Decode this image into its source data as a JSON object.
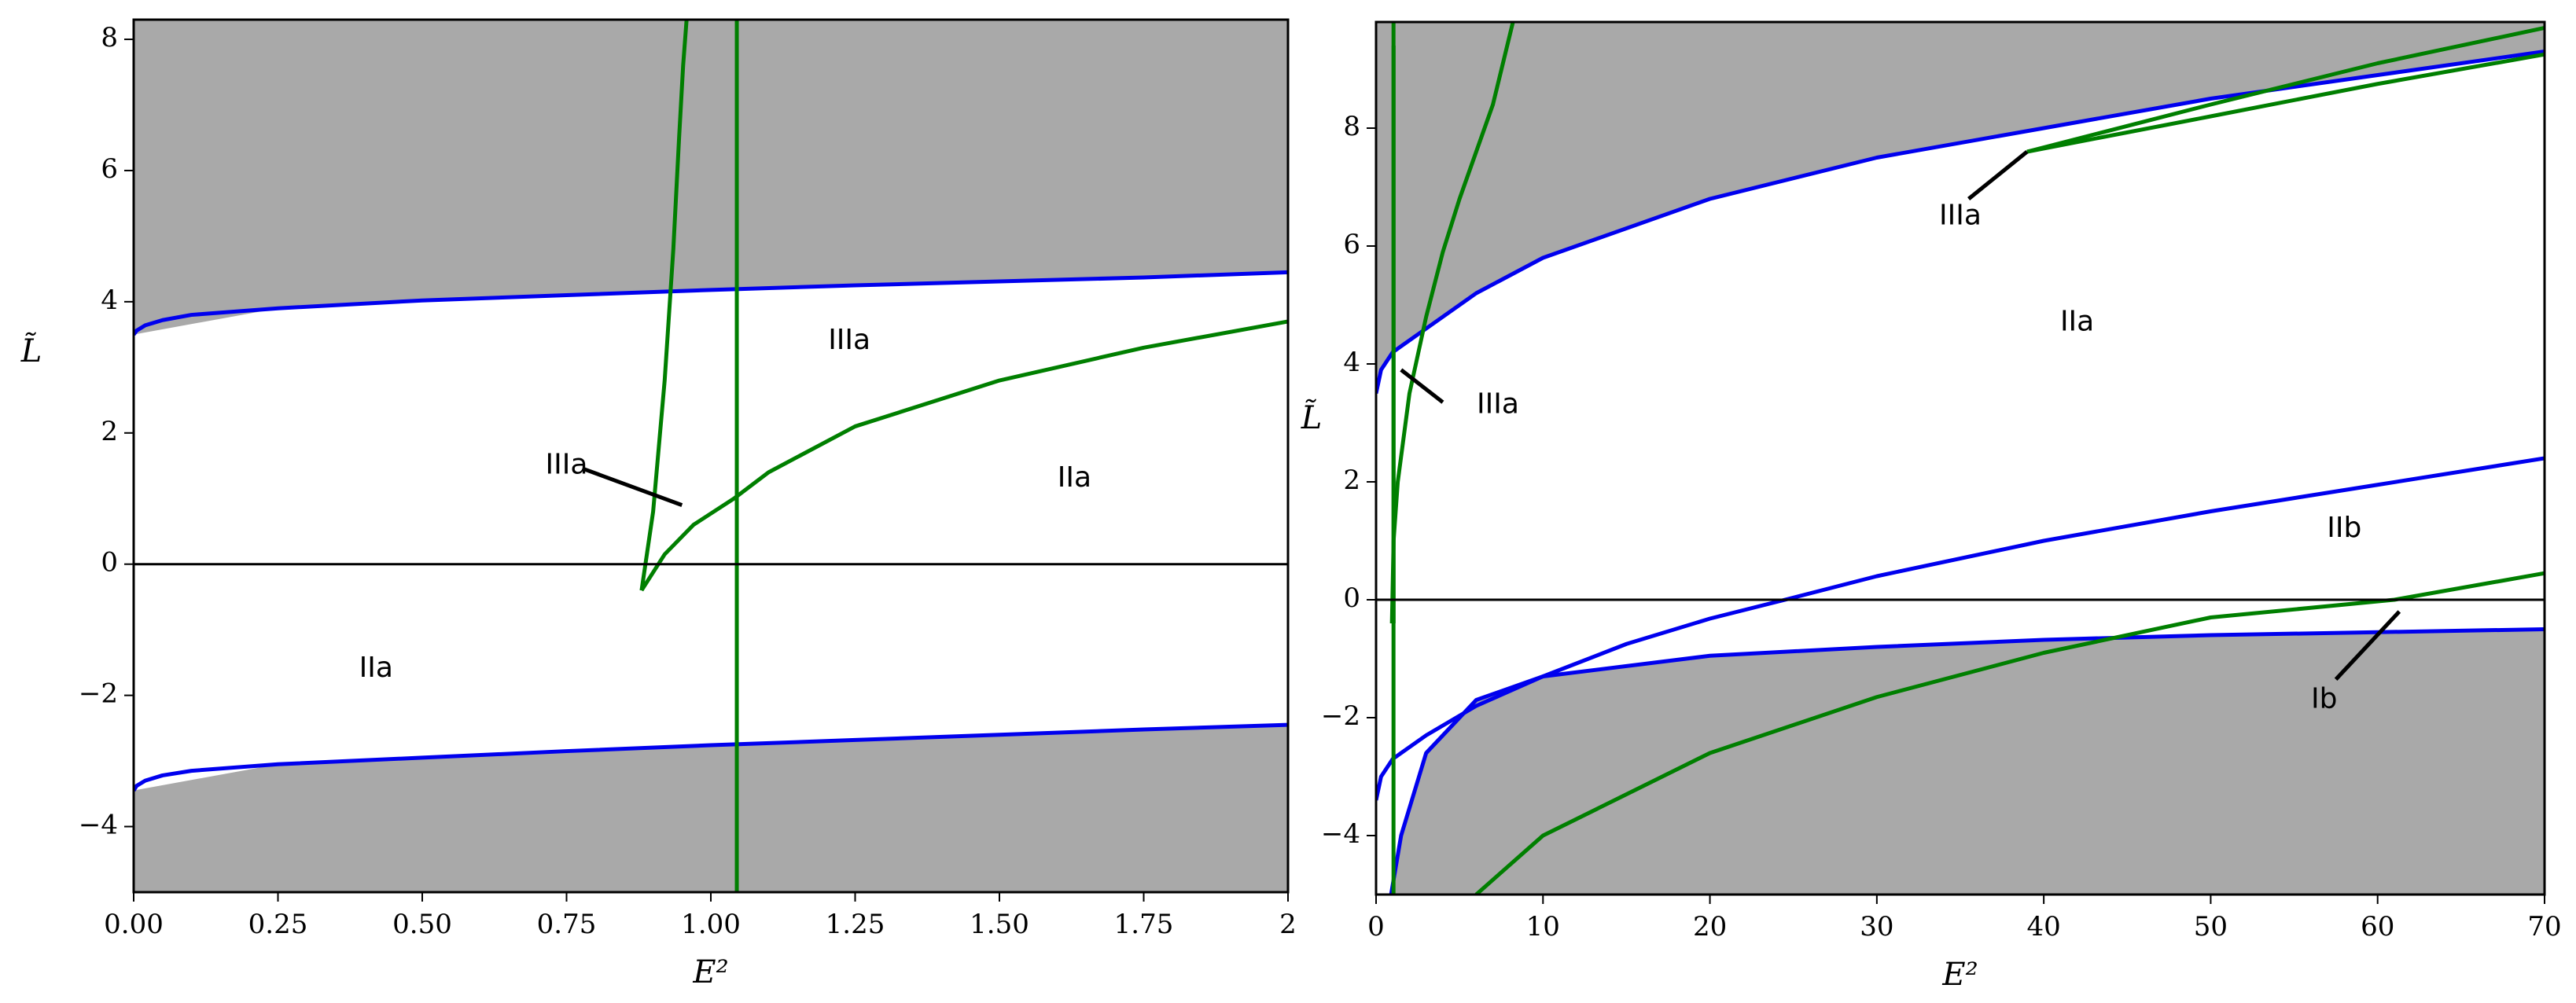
{
  "colors": {
    "shade": "#a9a9a9",
    "blue_curve": "#0000ee",
    "green_curve": "#007f00",
    "axis": "#000000",
    "background": "#ffffff"
  },
  "chart_data": [
    {
      "type": "line",
      "xlabel": "E²",
      "ylabel": "L̃",
      "xlim": [
        0,
        2
      ],
      "ylim": [
        -5,
        8.3
      ],
      "x_ticks": [
        0,
        0.25,
        0.5,
        0.75,
        1.0,
        1.25,
        1.5,
        1.75,
        2
      ],
      "x_tick_labels": [
        "0.00",
        "0.25",
        "0.50",
        "0.75",
        "1.00",
        "1.25",
        "1.50",
        "1.75",
        "2"
      ],
      "y_ticks": [
        -4,
        -2,
        0,
        2,
        4,
        6,
        8
      ],
      "y_tick_labels": [
        "−4",
        "−2",
        "0",
        "2",
        "4",
        "6",
        "8"
      ],
      "grid": false,
      "shaded_regions": [
        {
          "x": [
            0,
            0.25,
            0.5,
            0.75,
            1.0,
            1.25,
            1.5,
            1.75,
            2.0
          ],
          "lower": [
            3.5,
            3.9,
            4.02,
            4.1,
            4.18,
            4.25,
            4.31,
            4.37,
            4.45
          ],
          "upper": 8.3
        },
        {
          "x": [
            0,
            0.25,
            0.5,
            0.75,
            1.0,
            1.25,
            1.5,
            1.75,
            2.0
          ],
          "lower": -5,
          "upper": [
            -3.45,
            -3.05,
            -2.95,
            -2.85,
            -2.76,
            -2.68,
            -2.6,
            -2.52,
            -2.45
          ]
        }
      ],
      "series": [
        {
          "color": "blue",
          "x": [
            0,
            0.005,
            0.02,
            0.05,
            0.1,
            0.25,
            0.5,
            0.75,
            1.0,
            1.25,
            1.5,
            1.75,
            2.0
          ],
          "y": [
            3.5,
            3.56,
            3.64,
            3.72,
            3.8,
            3.9,
            4.02,
            4.1,
            4.18,
            4.25,
            4.31,
            4.37,
            4.45
          ]
        },
        {
          "color": "blue",
          "x": [
            0,
            0.005,
            0.02,
            0.05,
            0.1,
            0.25,
            0.5,
            0.75,
            1.0,
            1.25,
            1.5,
            1.75,
            2.0
          ],
          "y": [
            -3.45,
            -3.38,
            -3.3,
            -3.22,
            -3.15,
            -3.05,
            -2.95,
            -2.85,
            -2.76,
            -2.68,
            -2.6,
            -2.52,
            -2.45
          ]
        },
        {
          "color": "green",
          "x": [
            0.88,
            0.9,
            0.92,
            0.935,
            0.945,
            0.952,
            0.958
          ],
          "y": [
            -0.4,
            0.8,
            2.8,
            4.8,
            6.5,
            7.6,
            8.3
          ]
        },
        {
          "color": "green",
          "x": [
            0.88,
            0.92,
            0.97,
            1.04,
            1.1,
            1.25,
            1.5,
            1.75,
            2.0
          ],
          "y": [
            -0.4,
            0.15,
            0.6,
            1.0,
            1.4,
            2.1,
            2.8,
            3.3,
            3.7
          ]
        },
        {
          "color": "green",
          "x": [
            1.045,
            1.045
          ],
          "y": [
            -5,
            8.3
          ]
        },
        {
          "color": "black",
          "x": [
            0,
            2
          ],
          "y": [
            0,
            0
          ]
        }
      ],
      "annotations": [
        {
          "text": "IIIa",
          "x": 1.24,
          "y": 3.4
        },
        {
          "text": "IIIa",
          "x": 0.75,
          "y": 1.5
        },
        {
          "text": "IIa",
          "x": 1.63,
          "y": 1.3
        },
        {
          "text": "IIa",
          "x": 0.42,
          "y": -1.6
        }
      ],
      "pointers": [
        {
          "x": [
            0.78,
            0.95
          ],
          "y": [
            1.45,
            0.9
          ]
        }
      ]
    },
    {
      "type": "line",
      "xlabel": "E²",
      "ylabel": "L̃",
      "xlim": [
        0,
        70
      ],
      "ylim": [
        -5,
        9.8
      ],
      "x_ticks": [
        0,
        10,
        20,
        30,
        40,
        50,
        60,
        70
      ],
      "x_tick_labels": [
        "0",
        "10",
        "20",
        "30",
        "40",
        "50",
        "60",
        "70"
      ],
      "y_ticks": [
        -4,
        -2,
        0,
        2,
        4,
        6,
        8
      ],
      "y_tick_labels": [
        "−4",
        "−2",
        "0",
        "2",
        "4",
        "6",
        "8"
      ],
      "grid": false,
      "shaded_regions": [
        {
          "x": [
            0,
            0.3,
            1,
            3,
            6,
            10,
            20,
            30,
            40,
            50,
            60,
            70
          ],
          "lower": [
            3.5,
            3.9,
            4.2,
            4.6,
            5.2,
            5.8,
            6.8,
            7.5,
            8.0,
            8.5,
            8.9,
            9.3
          ],
          "upper": 9.8
        },
        {
          "x": [
            0,
            0.9,
            1.5,
            3,
            6,
            10,
            20,
            30,
            40,
            50,
            60,
            70
          ],
          "lower": -5,
          "upper": [
            -5,
            -5,
            -4.0,
            -2.6,
            -1.7,
            -1.3,
            -0.95,
            -0.8,
            -0.68,
            -0.6,
            -0.55,
            -0.5
          ]
        }
      ],
      "series": [
        {
          "color": "blue",
          "x": [
            0,
            0.3,
            1,
            3,
            6,
            10,
            20,
            30,
            40,
            50,
            60,
            70
          ],
          "y": [
            3.5,
            3.9,
            4.2,
            4.6,
            5.2,
            5.8,
            6.8,
            7.5,
            8.0,
            8.5,
            8.9,
            9.3
          ]
        },
        {
          "color": "blue",
          "x": [
            0.9,
            1.5,
            3,
            6,
            10,
            20,
            30,
            40,
            50,
            60,
            70
          ],
          "y": [
            -5,
            -4.0,
            -2.6,
            -1.7,
            -1.3,
            -0.95,
            -0.8,
            -0.68,
            -0.6,
            -0.55,
            -0.5
          ]
        },
        {
          "color": "blue",
          "x": [
            0,
            0.3,
            1,
            3,
            6,
            10,
            15,
            20,
            24.5,
            30,
            40,
            50,
            60,
            70
          ],
          "y": [
            -3.4,
            -3.0,
            -2.7,
            -2.3,
            -1.8,
            -1.3,
            -0.75,
            -0.32,
            0,
            0.4,
            1.0,
            1.5,
            1.95,
            2.4
          ]
        },
        {
          "color": "green",
          "x": [
            0.95,
            1.05,
            1.3,
            2,
            3,
            4,
            5,
            6,
            7,
            8.2
          ],
          "y": [
            -0.4,
            1.0,
            2.0,
            3.5,
            4.8,
            5.9,
            6.8,
            7.6,
            8.4,
            9.8
          ]
        },
        {
          "color": "green",
          "x": [
            1.05,
            1.05
          ],
          "y": [
            -0.4,
            9.4
          ]
        },
        {
          "color": "green",
          "x": [
            1.045,
            1.045
          ],
          "y": [
            -5,
            9.8
          ]
        },
        {
          "color": "green",
          "x": [
            6,
            10,
            20,
            30,
            40,
            50,
            61,
            70
          ],
          "y": [
            -5,
            -4.0,
            -2.6,
            -1.65,
            -0.9,
            -0.3,
            0,
            0.45
          ]
        },
        {
          "color": "green",
          "x": [
            39,
            50,
            60,
            70
          ],
          "y": [
            7.6,
            8.4,
            9.1,
            9.7
          ]
        },
        {
          "color": "green",
          "x": [
            39,
            50,
            60,
            70
          ],
          "y": [
            7.6,
            8.2,
            8.75,
            9.25
          ]
        },
        {
          "color": "black",
          "x": [
            0,
            70
          ],
          "y": [
            0,
            0
          ]
        }
      ],
      "annotations": [
        {
          "text": "IIIa",
          "x": 35,
          "y": 6.5
        },
        {
          "text": "IIa",
          "x": 42,
          "y": 4.7
        },
        {
          "text": "IIIa",
          "x": 7.3,
          "y": 3.3
        },
        {
          "text": "IIb",
          "x": 58,
          "y": 1.2
        },
        {
          "text": "Ib",
          "x": 56.8,
          "y": -1.7
        }
      ],
      "pointers": [
        {
          "x": [
            35.5,
            39
          ],
          "y": [
            6.8,
            7.6
          ]
        },
        {
          "x": [
            1.5,
            4
          ],
          "y": [
            3.9,
            3.35
          ]
        },
        {
          "x": [
            57.5,
            61.3
          ],
          "y": [
            -1.35,
            -0.2
          ]
        }
      ]
    }
  ]
}
